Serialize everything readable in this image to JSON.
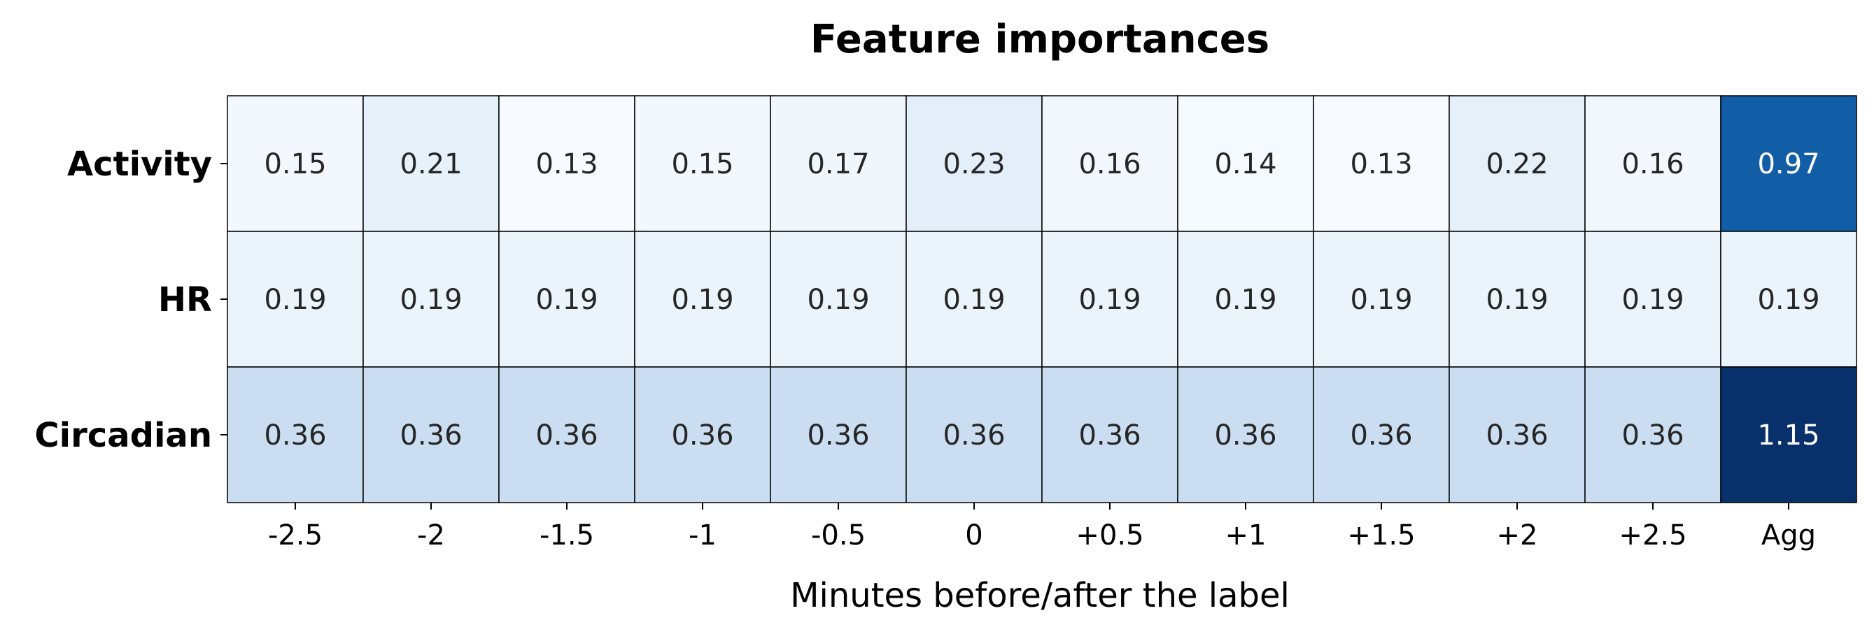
{
  "chart_data": {
    "type": "heatmap",
    "title": "Feature importances",
    "xlabel": "Minutes before/after the label",
    "ylabel": "",
    "rows": [
      "Activity",
      "HR",
      "Circadian"
    ],
    "columns": [
      "-2.5",
      "-2",
      "-1.5",
      "-1",
      "-0.5",
      "0",
      "+0.5",
      "+1",
      "+1.5",
      "+2",
      "+2.5",
      "Agg"
    ],
    "values": [
      [
        0.15,
        0.21,
        0.13,
        0.15,
        0.17,
        0.23,
        0.16,
        0.14,
        0.13,
        0.22,
        0.16,
        0.97
      ],
      [
        0.19,
        0.19,
        0.19,
        0.19,
        0.19,
        0.19,
        0.19,
        0.19,
        0.19,
        0.19,
        0.19,
        0.19
      ],
      [
        0.36,
        0.36,
        0.36,
        0.36,
        0.36,
        0.36,
        0.36,
        0.36,
        0.36,
        0.36,
        0.36,
        1.15
      ]
    ],
    "colormap": "Blues",
    "value_range": [
      0.13,
      1.15
    ],
    "grid": false,
    "colors": {
      "cell_border": "#000000",
      "text_dark": "#262626",
      "text_light": "#ffffff"
    }
  }
}
